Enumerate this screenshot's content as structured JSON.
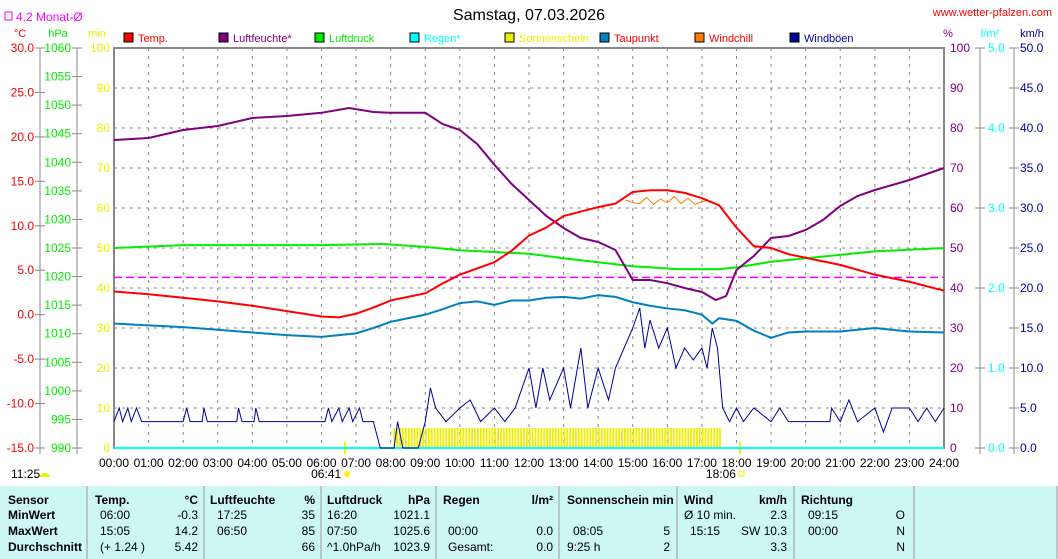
{
  "header": {
    "title": "Samstag, 07.03.2026",
    "website": "www.wetter-pfalzen.com",
    "month_avg_label": "4.2 Monat-Ø",
    "day_length": "11:25",
    "sunrise": "06:41",
    "sunset": "18:06"
  },
  "colors": {
    "temp": "#ff0000",
    "humidity": "#800080",
    "pressure": "#00ee00",
    "rain": "#00ffff",
    "sunshine": "#eeee00",
    "dewpoint": "#0080c0",
    "windchill": "#ff8000",
    "gusts": "#000099",
    "avg": "#ff00ff"
  },
  "chart_data": {
    "type": "line",
    "title": "Samstag, 07.03.2026",
    "legend": [
      {
        "key": "temp",
        "label": "Temp."
      },
      {
        "key": "humidity",
        "label": "Luftfeuchte*"
      },
      {
        "key": "pressure",
        "label": "Luftdruck"
      },
      {
        "key": "rain",
        "label": "Regen*"
      },
      {
        "key": "sunshine",
        "label": "Sonnenschein"
      },
      {
        "key": "dewpoint",
        "label": "Taupunkt"
      },
      {
        "key": "windchill",
        "label": "Windchill"
      },
      {
        "key": "gusts",
        "label": "Windböen"
      }
    ],
    "x_ticks": [
      "00:00",
      "01:00",
      "02:00",
      "03:00",
      "04:00",
      "05:00",
      "06:00",
      "07:00",
      "08:00",
      "09:00",
      "10:00",
      "11:00",
      "12:00",
      "13:00",
      "14:00",
      "15:00",
      "16:00",
      "17:00",
      "18:00",
      "19:00",
      "20:00",
      "21:00",
      "22:00",
      "23:00",
      "24:00"
    ],
    "axes": {
      "temp": {
        "unit": "°C",
        "min": -15,
        "max": 30,
        "step": 5,
        "dec": 1,
        "color": "#ff0000"
      },
      "pressure": {
        "unit": "hPa",
        "min": 990,
        "max": 1060,
        "step": 5,
        "dec": 0,
        "color": "#00ee00"
      },
      "sunshine": {
        "unit": "min",
        "min": 0,
        "max": 100,
        "step": 10,
        "dec": 0,
        "color": "#eeee00"
      },
      "humidity": {
        "unit": "%",
        "min": 0,
        "max": 100,
        "step": 10,
        "dec": 0,
        "color": "#800080"
      },
      "rain": {
        "unit": "l/m²",
        "min": 0,
        "max": 5,
        "step": 1,
        "dec": 1,
        "color": "#00ffff"
      },
      "gusts": {
        "unit": "km/h",
        "min": 0,
        "max": 50,
        "step": 5,
        "dec": 1,
        "color": "#000099"
      }
    },
    "month_avg_temp": 4.2,
    "series": {
      "temp": [
        [
          0,
          2.6
        ],
        [
          1,
          2.3
        ],
        [
          2,
          1.9
        ],
        [
          3,
          1.5
        ],
        [
          4,
          1.0
        ],
        [
          5,
          0.4
        ],
        [
          6,
          -0.2
        ],
        [
          6.5,
          -0.3
        ],
        [
          7,
          0.1
        ],
        [
          7.5,
          0.8
        ],
        [
          8,
          1.6
        ],
        [
          8.5,
          2.0
        ],
        [
          9,
          2.4
        ],
        [
          9.5,
          3.5
        ],
        [
          10,
          4.5
        ],
        [
          11,
          5.9
        ],
        [
          11.5,
          7.2
        ],
        [
          12,
          8.9
        ],
        [
          12.5,
          9.8
        ],
        [
          13,
          11.1
        ],
        [
          13.5,
          11.6
        ],
        [
          14,
          12.1
        ],
        [
          14.5,
          12.5
        ],
        [
          15,
          13.8
        ],
        [
          15.5,
          14.0
        ],
        [
          16,
          14.0
        ],
        [
          16.5,
          13.7
        ],
        [
          17,
          13.1
        ],
        [
          17.5,
          12.3
        ],
        [
          18,
          9.8
        ],
        [
          18.5,
          7.7
        ],
        [
          19,
          7.5
        ],
        [
          19.5,
          6.8
        ],
        [
          20,
          6.4
        ],
        [
          20.5,
          6.0
        ],
        [
          21,
          5.6
        ],
        [
          22,
          4.5
        ],
        [
          23,
          3.7
        ],
        [
          24,
          2.7
        ]
      ],
      "humidity": [
        [
          0,
          77
        ],
        [
          1,
          77.5
        ],
        [
          2,
          79.5
        ],
        [
          3,
          80.5
        ],
        [
          4,
          82.5
        ],
        [
          5,
          83
        ],
        [
          6,
          83.8
        ],
        [
          6.8,
          85
        ],
        [
          7.5,
          84
        ],
        [
          8,
          83.8
        ],
        [
          9,
          83.8
        ],
        [
          9.5,
          81
        ],
        [
          10,
          79.5
        ],
        [
          10.5,
          76
        ],
        [
          11,
          70.8
        ],
        [
          11.5,
          66
        ],
        [
          12,
          62
        ],
        [
          12.5,
          58
        ],
        [
          13,
          55
        ],
        [
          13.5,
          52.5
        ],
        [
          14,
          51.5
        ],
        [
          14.5,
          49.5
        ],
        [
          15,
          42
        ],
        [
          15.5,
          42
        ],
        [
          16,
          41.2
        ],
        [
          16.5,
          40
        ],
        [
          17,
          39
        ],
        [
          17.4,
          37
        ],
        [
          17.7,
          38
        ],
        [
          18,
          44.5
        ],
        [
          18.5,
          48
        ],
        [
          19,
          52.5
        ],
        [
          19.5,
          53
        ],
        [
          20,
          54.5
        ],
        [
          20.5,
          57
        ],
        [
          21,
          60.5
        ],
        [
          21.5,
          63
        ],
        [
          22,
          64.5
        ],
        [
          23,
          67
        ],
        [
          24,
          70
        ]
      ],
      "pressure": [
        [
          0,
          1025
        ],
        [
          2,
          1025.5
        ],
        [
          4,
          1025.5
        ],
        [
          6,
          1025.5
        ],
        [
          7.8,
          1025.7
        ],
        [
          9,
          1025.2
        ],
        [
          10,
          1024.6
        ],
        [
          12,
          1024
        ],
        [
          13,
          1023.2
        ],
        [
          14,
          1022.5
        ],
        [
          15,
          1021.8
        ],
        [
          16.3,
          1021.3
        ],
        [
          17.5,
          1021.3
        ],
        [
          18,
          1021.6
        ],
        [
          19,
          1022.6
        ],
        [
          20,
          1023.2
        ],
        [
          22,
          1024.4
        ],
        [
          24,
          1025
        ]
      ],
      "dewpoint": [
        [
          0,
          -1.0
        ],
        [
          1,
          -1.2
        ],
        [
          2,
          -1.4
        ],
        [
          3,
          -1.7
        ],
        [
          4,
          -2.0
        ],
        [
          5,
          -2.3
        ],
        [
          6,
          -2.5
        ],
        [
          7,
          -2.1
        ],
        [
          7.5,
          -1.5
        ],
        [
          8,
          -0.8
        ],
        [
          8.5,
          -0.4
        ],
        [
          9,
          0
        ],
        [
          9.5,
          0.6
        ],
        [
          10,
          1.3
        ],
        [
          10.5,
          1.5
        ],
        [
          11,
          1.1
        ],
        [
          11.5,
          1.6
        ],
        [
          12,
          1.6
        ],
        [
          12.5,
          1.9
        ],
        [
          13,
          2.0
        ],
        [
          13.5,
          1.8
        ],
        [
          14,
          2.2
        ],
        [
          14.5,
          2.0
        ],
        [
          15,
          1.4
        ],
        [
          15.5,
          1.0
        ],
        [
          16,
          0.7
        ],
        [
          16.5,
          0.5
        ],
        [
          17,
          0
        ],
        [
          17.3,
          -1.0
        ],
        [
          17.5,
          -0.4
        ],
        [
          18,
          -0.7
        ],
        [
          18.5,
          -1.8
        ],
        [
          19,
          -2.6
        ],
        [
          19.5,
          -2.0
        ],
        [
          20,
          -1.9
        ],
        [
          21,
          -1.9
        ],
        [
          22,
          -1.5
        ],
        [
          23,
          -1.9
        ],
        [
          24,
          -2.0
        ]
      ],
      "windchill": [
        [
          14.8,
          12.9
        ],
        [
          15,
          12.6
        ],
        [
          15.2,
          12.5
        ],
        [
          15.4,
          13.2
        ],
        [
          15.6,
          12.4
        ],
        [
          15.8,
          13.0
        ],
        [
          16,
          12.6
        ],
        [
          16.2,
          13.3
        ],
        [
          16.4,
          12.5
        ],
        [
          16.6,
          13.1
        ],
        [
          16.8,
          12.4
        ],
        [
          17,
          12.7
        ],
        [
          17.2,
          12.9
        ]
      ],
      "gusts": [
        [
          0,
          3.3
        ],
        [
          0.15,
          5
        ],
        [
          0.25,
          3.3
        ],
        [
          0.4,
          5
        ],
        [
          0.5,
          3.3
        ],
        [
          0.65,
          5
        ],
        [
          0.8,
          3.3
        ],
        [
          2,
          3.3
        ],
        [
          2.1,
          5
        ],
        [
          2.2,
          3.3
        ],
        [
          2.55,
          3.3
        ],
        [
          2.6,
          5
        ],
        [
          2.7,
          3.3
        ],
        [
          3.55,
          3.3
        ],
        [
          3.6,
          5
        ],
        [
          3.7,
          3.3
        ],
        [
          4.05,
          3.3
        ],
        [
          4.1,
          5
        ],
        [
          4.2,
          3.3
        ],
        [
          6.1,
          3.3
        ],
        [
          6.2,
          5
        ],
        [
          6.3,
          3.3
        ],
        [
          6.5,
          5
        ],
        [
          6.6,
          3.3
        ],
        [
          6.8,
          5
        ],
        [
          6.9,
          3.3
        ],
        [
          7.1,
          5
        ],
        [
          7.2,
          3.3
        ],
        [
          7.5,
          3.3
        ],
        [
          7.7,
          0
        ],
        [
          8.1,
          0
        ],
        [
          8.2,
          3.3
        ],
        [
          8.35,
          0
        ],
        [
          8.8,
          0
        ],
        [
          9,
          3.3
        ],
        [
          9.15,
          7.5
        ],
        [
          9.3,
          5
        ],
        [
          9.6,
          3.3
        ],
        [
          10,
          5
        ],
        [
          10.3,
          6
        ],
        [
          10.6,
          3.3
        ],
        [
          11,
          5
        ],
        [
          11.3,
          3.3
        ],
        [
          11.6,
          5
        ],
        [
          12,
          10
        ],
        [
          12.2,
          5
        ],
        [
          12.4,
          10
        ],
        [
          12.6,
          6
        ],
        [
          13,
          10
        ],
        [
          13.2,
          5
        ],
        [
          13.5,
          12.5
        ],
        [
          13.7,
          5
        ],
        [
          14,
          10
        ],
        [
          14.3,
          6
        ],
        [
          14.5,
          10
        ],
        [
          14.75,
          12.5
        ],
        [
          15,
          15
        ],
        [
          15.2,
          17.5
        ],
        [
          15.35,
          12.5
        ],
        [
          15.5,
          16
        ],
        [
          15.75,
          12.5
        ],
        [
          16,
          15
        ],
        [
          16.25,
          10
        ],
        [
          16.5,
          12.5
        ],
        [
          16.75,
          11
        ],
        [
          17,
          12.5
        ],
        [
          17.15,
          10
        ],
        [
          17.3,
          15
        ],
        [
          17.45,
          12.5
        ],
        [
          17.6,
          5
        ],
        [
          17.8,
          3.3
        ],
        [
          18,
          5
        ],
        [
          18.2,
          3.3
        ],
        [
          18.5,
          5
        ],
        [
          19,
          3.3
        ],
        [
          19.25,
          5
        ],
        [
          19.5,
          3.3
        ],
        [
          20.7,
          3.3
        ],
        [
          20.75,
          5
        ],
        [
          21,
          3.3
        ],
        [
          21.25,
          6
        ],
        [
          21.5,
          3.3
        ],
        [
          22,
          5
        ],
        [
          22.25,
          2
        ],
        [
          22.5,
          5
        ],
        [
          23,
          5
        ],
        [
          23.25,
          3.3
        ],
        [
          23.5,
          5
        ],
        [
          23.75,
          3.3
        ],
        [
          24,
          5
        ]
      ],
      "sunshine": {
        "start": 8.08,
        "end": 17.5,
        "value_per_5min": 5
      },
      "rain": [
        [
          0,
          0
        ],
        [
          24,
          0
        ]
      ]
    }
  },
  "table": {
    "headers": {
      "sensor": "Sensor",
      "temp": "Temp.",
      "temp_unit": "°C",
      "hum": "Luftfeuchte",
      "hum_unit": "%",
      "press": "Luftdruck",
      "press_unit": "hPa",
      "rain": "Regen",
      "rain_unit": "l/m²",
      "sun": "Sonnenschein min",
      "wind": "Wind",
      "wind_unit": "km/h",
      "dir": "Richtung"
    },
    "rows": [
      {
        "label": "MinWert",
        "temp_t": "06:00",
        "temp_v": "-0.3",
        "hum_t": "17:25",
        "hum_v": "35",
        "press_t": "16:20",
        "press_v": "1021.1",
        "rain_t": "",
        "rain_v": "",
        "sun_t": "",
        "sun_v": "",
        "wind_t": "Ø 10 min.",
        "wind_v": "2.3",
        "dir_t": "09:15",
        "dir_v": "O"
      },
      {
        "label": "MaxWert",
        "temp_t": "15:05",
        "temp_v": "14.2",
        "hum_t": "06:50",
        "hum_v": "85",
        "press_t": "07:50",
        "press_v": "1025.6",
        "rain_t": "00:00",
        "rain_v": "0.0",
        "sun_t": "08:05",
        "sun_v": "5",
        "wind_t": "15:15",
        "wind_v": "SW 10.3",
        "dir_t": "00:00",
        "dir_v": "N"
      },
      {
        "label": "Durchschnitt",
        "temp_t": "(+ 1.24 )",
        "temp_v": "5.42",
        "hum_t": "",
        "hum_v": "66",
        "press_t": "^1.0hPa/h",
        "press_v": "1023.9",
        "rain_t": "Gesamt:",
        "rain_v": "0.0",
        "sun_t": "9:25 h",
        "sun_v": "2",
        "wind_t": "",
        "wind_v": "3.3",
        "dir_t": "",
        "dir_v": "N"
      }
    ]
  }
}
